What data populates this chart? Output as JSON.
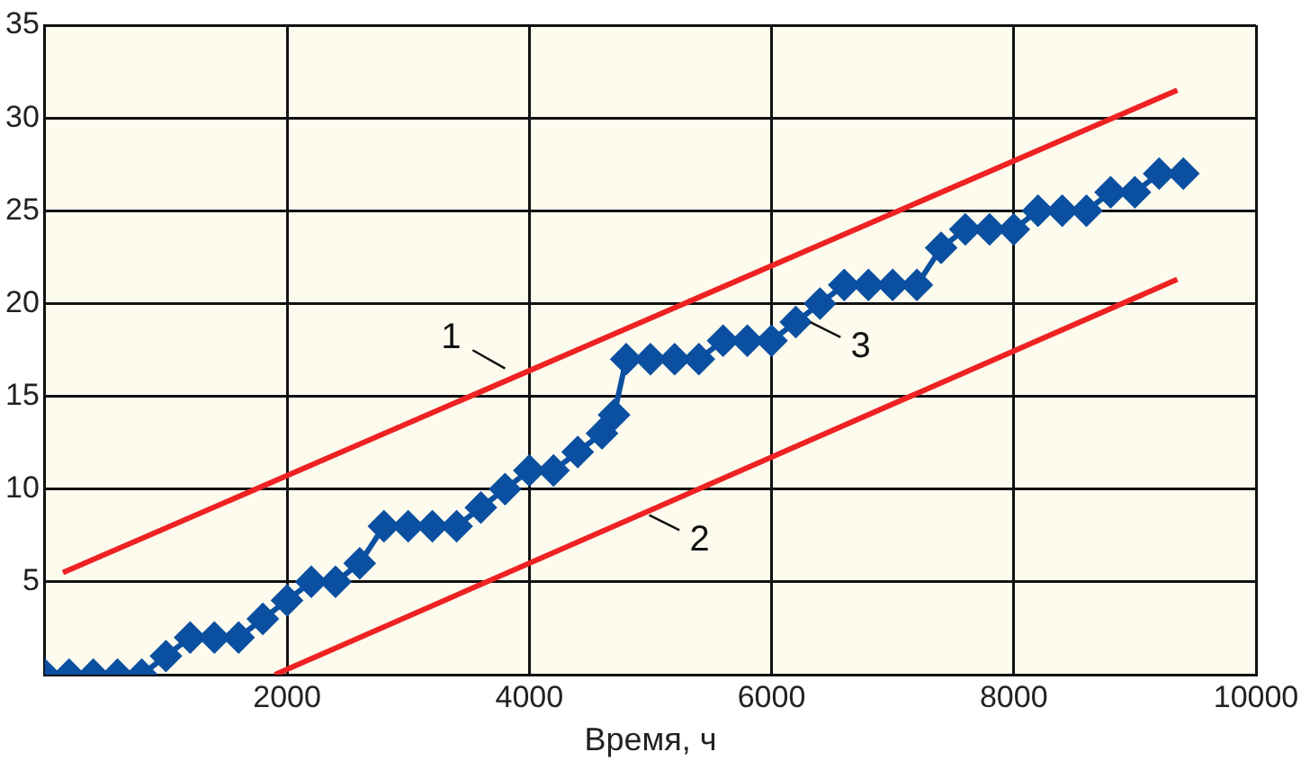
{
  "chart_data": {
    "type": "line",
    "xlabel": "Время, ч",
    "xlim": [
      0,
      10000
    ],
    "xticks": [
      {
        "value": 0,
        "label": null
      },
      2000,
      4000,
      6000,
      8000,
      10000
    ],
    "ylim": [
      0,
      35
    ],
    "yticks": [
      {
        "value": 0,
        "label": null
      },
      5,
      10,
      15,
      20,
      25,
      30,
      35
    ],
    "grid": true,
    "legend": false,
    "series": [
      {
        "color": "#ee2222",
        "marker": "none",
        "x": [
          150,
          9350
        ],
        "values": [
          5.5,
          31.5
        ]
      },
      {
        "color": "#ee2222",
        "marker": "none",
        "x": [
          1900,
          9350
        ],
        "values": [
          0,
          21.3
        ]
      },
      {
        "color": "#0b4fa0",
        "marker": "diamond",
        "x": [
          0,
          200,
          400,
          600,
          800,
          1000,
          1200,
          1400,
          1600,
          1800,
          2000,
          2200,
          2400,
          2600,
          2800,
          3000,
          3200,
          3400,
          3600,
          3800,
          4000,
          4200,
          4400,
          4600,
          4700,
          4800,
          5000,
          5200,
          5400,
          5600,
          5800,
          6000,
          6200,
          6400,
          6600,
          6800,
          7000,
          7200,
          7400,
          7600,
          7800,
          8000,
          8200,
          8400,
          8600,
          8800,
          9000,
          9200,
          9400
        ],
        "values": [
          0,
          0,
          0,
          0,
          0,
          1,
          2,
          2,
          2,
          3,
          4,
          5,
          5,
          6,
          8,
          8,
          8,
          8,
          9,
          10,
          11,
          11,
          12,
          13,
          14,
          17,
          17,
          17,
          17,
          18,
          18,
          18,
          19,
          20,
          21,
          21,
          21,
          21,
          23,
          24,
          24,
          24,
          25,
          25,
          25,
          26,
          26,
          27,
          27
        ]
      }
    ],
    "annotations": [
      {
        "text": "1",
        "x": 3800,
        "y": 16.5
      },
      {
        "text": "2",
        "x": 4990,
        "y": 8.6
      },
      {
        "text": "3",
        "x": 6320,
        "y": 19
      }
    ]
  }
}
